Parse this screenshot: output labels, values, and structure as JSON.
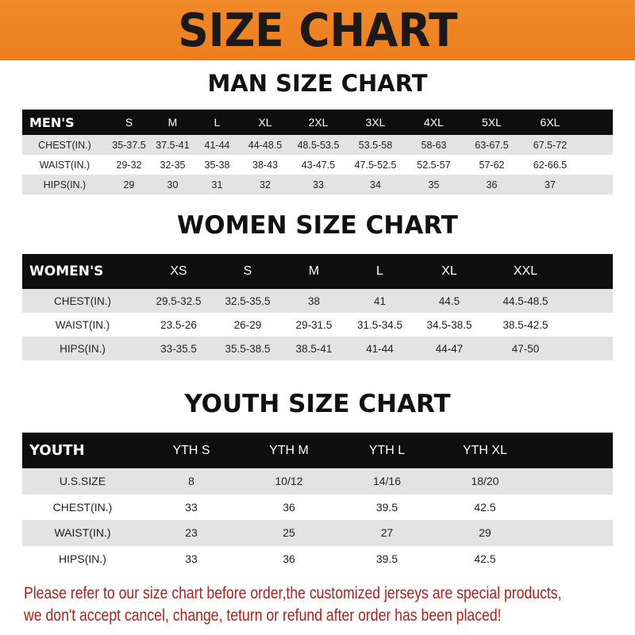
{
  "banner_title": "SIZE CHART",
  "colors": {
    "banner": "#ee7d1c",
    "header_row": "#0e0e0e",
    "stripe": "#e3e3e3",
    "note": "#b11f1f"
  },
  "men": {
    "title": "MAN SIZE CHART",
    "header": [
      "MEN'S",
      "S",
      "M",
      "L",
      "XL",
      "2XL",
      "3XL",
      "4XL",
      "5XL",
      "6XL"
    ],
    "rows": [
      [
        "CHEST(IN.)",
        "35-37.5",
        "37.5-41",
        "41-44",
        "44-48.5",
        "48.5-53.5",
        "53.5-58",
        "58-63",
        "63-67.5",
        "67.5-72"
      ],
      [
        "WAIST(IN.)",
        "29-32",
        "32-35",
        "35-38",
        "38-43",
        "43-47.5",
        "47.5-52.5",
        "52.5-57",
        "57-62",
        "62-66.5"
      ],
      [
        "HIPS(IN.)",
        "29",
        "30",
        "31",
        "32",
        "33",
        "34",
        "35",
        "36",
        "37"
      ]
    ]
  },
  "women": {
    "title": "WOMEN SIZE CHART",
    "header": [
      "WOMEN'S",
      "XS",
      "S",
      "M",
      "L",
      "XL",
      "XXL"
    ],
    "rows": [
      [
        "CHEST(IN.)",
        "29.5-32.5",
        "32.5-35.5",
        "38",
        "41",
        "44.5",
        "44.5-48.5"
      ],
      [
        "WAIST(IN.)",
        "23.5-26",
        "26-29",
        "29-31.5",
        "31.5-34.5",
        "34.5-38.5",
        "38.5-42.5"
      ],
      [
        "HIPS(IN.)",
        "33-35.5",
        "35.5-38.5",
        "38.5-41",
        "41-44",
        "44-47",
        "47-50"
      ]
    ]
  },
  "youth": {
    "title": "YOUTH SIZE CHART",
    "header": [
      "YOUTH",
      "YTH S",
      "YTH M",
      "YTH L",
      "YTH XL"
    ],
    "rows": [
      [
        "U.S.SIZE",
        "8",
        "10/12",
        "14/16",
        "18/20"
      ],
      [
        "CHEST(IN.)",
        "33",
        "36",
        "39.5",
        "42.5"
      ],
      [
        "WAIST(IN.)",
        "23",
        "25",
        "27",
        "29"
      ],
      [
        "HIPS(IN.)",
        "33",
        "36",
        "39.5",
        "42.5"
      ]
    ]
  },
  "note": [
    "Please refer to our size chart before order,the customized jerseys are special products,",
    "we don't accept cancel, change, teturn or refund after order has been placed!"
  ]
}
